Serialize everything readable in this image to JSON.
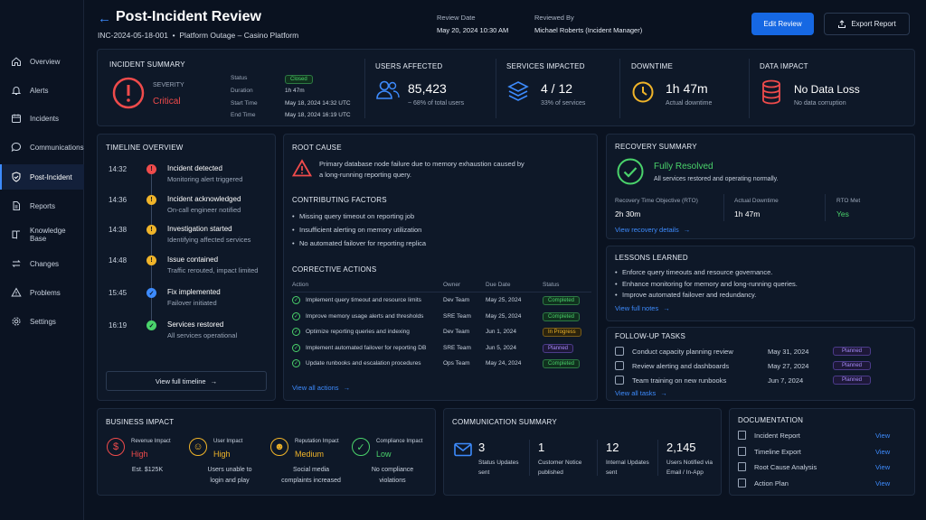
{
  "nav": [
    {
      "label": "Overview",
      "icon": "home-icon"
    },
    {
      "label": "Alerts",
      "icon": "bell-icon"
    },
    {
      "label": "Incidents",
      "icon": "calendar-icon"
    },
    {
      "label": "Communications",
      "icon": "chat-icon"
    },
    {
      "label": "Post-Incident",
      "icon": "shield-check-icon"
    },
    {
      "label": "Reports",
      "icon": "document-icon"
    },
    {
      "label": "Knowledge Base",
      "icon": "book-icon"
    },
    {
      "label": "Changes",
      "icon": "swap-icon"
    },
    {
      "label": "Problems",
      "icon": "warning-icon"
    },
    {
      "label": "Settings",
      "icon": "gear-icon"
    }
  ],
  "header": {
    "title": "Post-Incident Review",
    "subtitle": "INC-2024-05-18-001  •  Platform Outage – Casino Platform",
    "review_date_label": "Review Date",
    "review_date": "May 20, 2024 10:30 AM",
    "reviewed_by_label": "Reviewed By",
    "reviewed_by": "Michael Roberts (Incident Manager)",
    "edit_label": "Edit Review",
    "export_label": "Export Report"
  },
  "summary": {
    "title": "INCIDENT SUMMARY",
    "severity_label": "SEVERITY",
    "severity": "Critical",
    "status_label": "Status",
    "status": "Closed",
    "duration_label": "Duration",
    "duration": "1h 47m",
    "start_label": "Start Time",
    "start": "May 18, 2024 14:32 UTC",
    "end_label": "End Time",
    "end": "May 18, 2024 16:19 UTC"
  },
  "metrics": [
    {
      "title": "USERS AFFECTED",
      "value": "85,423",
      "sub": "~ 68% of total users"
    },
    {
      "title": "SERVICES IMPACTED",
      "value": "4 / 12",
      "sub": "33% of services"
    },
    {
      "title": "DOWNTIME",
      "value": "1h 47m",
      "sub": "Actual downtime"
    },
    {
      "title": "DATA IMPACT",
      "value": "No Data Loss",
      "sub": "No data corruption"
    }
  ],
  "timeline": {
    "title": "TIMELINE OVERVIEW",
    "button": "View full timeline",
    "events": [
      {
        "time": "14:32",
        "title": "Incident detected",
        "desc": "Monitoring alert triggered",
        "kind": "red"
      },
      {
        "time": "14:36",
        "title": "Incident acknowledged",
        "desc": "On-call engineer notified",
        "kind": "amber"
      },
      {
        "time": "14:38",
        "title": "Investigation started",
        "desc": "Identifying affected services",
        "kind": "amber"
      },
      {
        "time": "14:48",
        "title": "Issue contained",
        "desc": "Traffic rerouted, impact limited",
        "kind": "amber"
      },
      {
        "time": "15:45",
        "title": "Fix implemented",
        "desc": "Failover initiated",
        "kind": "blue"
      },
      {
        "time": "16:19",
        "title": "Services restored",
        "desc": "All services operational",
        "kind": "green"
      }
    ]
  },
  "root_cause": {
    "title": "ROOT CAUSE",
    "text1": "Primary database node failure due to memory exhaustion caused by",
    "text2": "a long-running reporting query.",
    "factors_title": "CONTRIBUTING FACTORS",
    "factors": [
      "Missing query timeout on reporting job",
      "Insufficient alerting on memory utilization",
      "No automated failover for reporting replica"
    ]
  },
  "actions": {
    "title": "CORRECTIVE ACTIONS",
    "headers": [
      "Action",
      "Owner",
      "Due Date",
      "Status"
    ],
    "rows": [
      {
        "action": "Implement query timeout and resource limits",
        "owner": "Dev Team",
        "due": "May 25, 2024",
        "status": "Completed",
        "kind": "green"
      },
      {
        "action": "Improve memory usage alerts and thresholds",
        "owner": "SRE Team",
        "due": "May 25, 2024",
        "status": "Completed",
        "kind": "green"
      },
      {
        "action": "Optimize reporting queries and indexing",
        "owner": "Dev Team",
        "due": "Jun 1, 2024",
        "status": "In Progress",
        "kind": "amber"
      },
      {
        "action": "Implement automated failover for reporting DB",
        "owner": "SRE Team",
        "due": "Jun 5, 2024",
        "status": "Planned",
        "kind": "purple"
      },
      {
        "action": "Update runbooks and escalation procedures",
        "owner": "Ops Team",
        "due": "May 24, 2024",
        "status": "Completed",
        "kind": "green"
      }
    ],
    "link": "View all actions"
  },
  "recovery": {
    "title": "RECOVERY SUMMARY",
    "status": "Fully Resolved",
    "sub": "All services restored and operating normally.",
    "rto_label": "Recovery Time Objective (RTO)",
    "rto": "2h 30m",
    "actual_label": "Actual Downtime",
    "actual": "1h 47m",
    "met_label": "RTO Met",
    "met": "Yes",
    "link": "View recovery details"
  },
  "lessons": {
    "title": "LESSONS LEARNED",
    "items": [
      "Enforce query timeouts and resource governance.",
      "Enhance monitoring for memory and long-running queries.",
      "Improve automated failover and redundancy."
    ],
    "link": "View full notes"
  },
  "followup": {
    "title": "FOLLOW-UP TASKS",
    "items": [
      {
        "task": "Conduct capacity planning review",
        "date": "May 31, 2024",
        "status": "Planned"
      },
      {
        "task": "Review alerting and dashboards",
        "date": "May 27, 2024",
        "status": "Planned"
      },
      {
        "task": "Team training on new runbooks",
        "date": "Jun 7, 2024",
        "status": "Planned"
      }
    ],
    "link": "View all tasks"
  },
  "business": {
    "title": "BUSINESS IMPACT",
    "items": [
      {
        "label": "Revenue Impact",
        "level": "High",
        "desc1": "Est. $125K",
        "desc2": "",
        "kind": "red",
        "icon": "dollar-icon"
      },
      {
        "label": "User Impact",
        "level": "High",
        "desc1": "Users unable to",
        "desc2": "login and play",
        "kind": "amber",
        "icon": "users-icon"
      },
      {
        "label": "Reputation Impact",
        "level": "Medium",
        "desc1": "Social media",
        "desc2": "complaints increased",
        "kind": "amber",
        "icon": "user-group-icon"
      },
      {
        "label": "Compliance Impact",
        "level": "Low",
        "desc1": "No compliance",
        "desc2": "violations",
        "kind": "green",
        "icon": "shield-icon"
      }
    ]
  },
  "communication": {
    "title": "COMMUNICATION SUMMARY",
    "items": [
      {
        "value": "3",
        "l1": "Status Updates",
        "l2": "sent"
      },
      {
        "value": "1",
        "l1": "Customer Notice",
        "l2": "published"
      },
      {
        "value": "12",
        "l1": "Internal Updates",
        "l2": "sent"
      },
      {
        "value": "2,145",
        "l1": "Users Notified via",
        "l2": "Email / In-App"
      }
    ]
  },
  "documentation": {
    "title": "DOCUMENTATION",
    "items": [
      {
        "label": "Incident Report",
        "link": "View"
      },
      {
        "label": "Timeline Export",
        "link": "View"
      },
      {
        "label": "Root Cause Analysis",
        "link": "View"
      },
      {
        "label": "Action Plan",
        "link": "View"
      }
    ]
  }
}
